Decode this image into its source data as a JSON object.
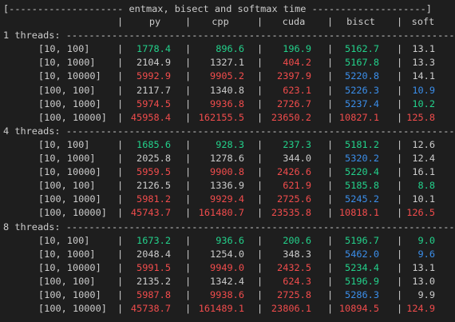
{
  "terminal": {
    "top_partial": "..............................................................................................",
    "title_line": "[-------------------- entmax, bisect and softmax time --------------------]",
    "header": {
      "cols": [
        "py",
        "cpp",
        "cuda",
        "bisct",
        "soft"
      ],
      "sep": "|"
    },
    "groups": [
      {
        "label": "1 threads: ----------------------------------------------------------------------",
        "rows": [
          {
            "label": "[10, 100]",
            "vals": [
              [
                "1778.4",
                "green"
              ],
              [
                "896.6",
                "green"
              ],
              [
                "196.9",
                "green"
              ],
              [
                "5162.7",
                "green"
              ],
              [
                "13.1",
                "white"
              ]
            ]
          },
          {
            "label": "[10, 1000]",
            "vals": [
              [
                "2104.9",
                "white"
              ],
              [
                "1327.1",
                "white"
              ],
              [
                "404.2",
                "red"
              ],
              [
                "5167.8",
                "green"
              ],
              [
                "13.3",
                "white"
              ]
            ]
          },
          {
            "label": "[10, 10000]",
            "vals": [
              [
                "5992.9",
                "red"
              ],
              [
                "9905.2",
                "red"
              ],
              [
                "2397.9",
                "red"
              ],
              [
                "5220.8",
                "blue"
              ],
              [
                "14.1",
                "white"
              ]
            ]
          },
          {
            "label": "[100, 100]",
            "vals": [
              [
                "2117.7",
                "white"
              ],
              [
                "1340.8",
                "white"
              ],
              [
                "623.1",
                "red"
              ],
              [
                "5226.3",
                "blue"
              ],
              [
                "10.9",
                "blue"
              ]
            ]
          },
          {
            "label": "[100, 1000]",
            "vals": [
              [
                "5974.5",
                "red"
              ],
              [
                "9936.8",
                "red"
              ],
              [
                "2726.7",
                "red"
              ],
              [
                "5237.4",
                "blue"
              ],
              [
                "10.2",
                "green"
              ]
            ]
          },
          {
            "label": "[100, 10000]",
            "vals": [
              [
                "45958.4",
                "red"
              ],
              [
                "162155.5",
                "red"
              ],
              [
                "23650.2",
                "red"
              ],
              [
                "10827.1",
                "red"
              ],
              [
                "125.8",
                "red"
              ]
            ]
          }
        ]
      },
      {
        "label": "4 threads: ----------------------------------------------------------------------",
        "rows": [
          {
            "label": "[10, 100]",
            "vals": [
              [
                "1685.6",
                "green"
              ],
              [
                "928.3",
                "green"
              ],
              [
                "237.3",
                "green"
              ],
              [
                "5181.2",
                "green"
              ],
              [
                "12.6",
                "white"
              ]
            ]
          },
          {
            "label": "[10, 1000]",
            "vals": [
              [
                "2025.8",
                "white"
              ],
              [
                "1278.6",
                "white"
              ],
              [
                "344.0",
                "white"
              ],
              [
                "5320.2",
                "blue"
              ],
              [
                "12.4",
                "white"
              ]
            ]
          },
          {
            "label": "[10, 10000]",
            "vals": [
              [
                "5959.5",
                "red"
              ],
              [
                "9900.8",
                "red"
              ],
              [
                "2426.6",
                "red"
              ],
              [
                "5220.4",
                "green"
              ],
              [
                "16.1",
                "white"
              ]
            ]
          },
          {
            "label": "[100, 100]",
            "vals": [
              [
                "2126.5",
                "white"
              ],
              [
                "1336.9",
                "white"
              ],
              [
                "621.9",
                "red"
              ],
              [
                "5185.8",
                "green"
              ],
              [
                "8.8",
                "green"
              ]
            ]
          },
          {
            "label": "[100, 1000]",
            "vals": [
              [
                "5981.2",
                "red"
              ],
              [
                "9929.4",
                "red"
              ],
              [
                "2725.6",
                "red"
              ],
              [
                "5245.2",
                "blue"
              ],
              [
                "10.1",
                "white"
              ]
            ]
          },
          {
            "label": "[100, 10000]",
            "vals": [
              [
                "45743.7",
                "red"
              ],
              [
                "161480.7",
                "red"
              ],
              [
                "23535.8",
                "red"
              ],
              [
                "10818.1",
                "red"
              ],
              [
                "126.5",
                "red"
              ]
            ]
          }
        ]
      },
      {
        "label": "8 threads: ----------------------------------------------------------------------",
        "rows": [
          {
            "label": "[10, 100]",
            "vals": [
              [
                "1673.2",
                "green"
              ],
              [
                "936.6",
                "green"
              ],
              [
                "200.6",
                "green"
              ],
              [
                "5196.7",
                "green"
              ],
              [
                "9.0",
                "green"
              ]
            ]
          },
          {
            "label": "[10, 1000]",
            "vals": [
              [
                "2048.4",
                "white"
              ],
              [
                "1254.0",
                "white"
              ],
              [
                "348.3",
                "white"
              ],
              [
                "5462.0",
                "blue"
              ],
              [
                "9.6",
                "blue"
              ]
            ]
          },
          {
            "label": "[10, 10000]",
            "vals": [
              [
                "5991.5",
                "red"
              ],
              [
                "9949.0",
                "red"
              ],
              [
                "2432.5",
                "red"
              ],
              [
                "5234.4",
                "green"
              ],
              [
                "13.1",
                "white"
              ]
            ]
          },
          {
            "label": "[100, 100]",
            "vals": [
              [
                "2135.2",
                "white"
              ],
              [
                "1342.4",
                "white"
              ],
              [
                "624.3",
                "red"
              ],
              [
                "5196.9",
                "green"
              ],
              [
                "13.0",
                "white"
              ]
            ]
          },
          {
            "label": "[100, 1000]",
            "vals": [
              [
                "5987.8",
                "red"
              ],
              [
                "9938.6",
                "red"
              ],
              [
                "2725.8",
                "red"
              ],
              [
                "5286.3",
                "blue"
              ],
              [
                "9.9",
                "white"
              ]
            ]
          },
          {
            "label": "[100, 10000]",
            "vals": [
              [
                "45738.7",
                "red"
              ],
              [
                "161489.1",
                "red"
              ],
              [
                "23806.1",
                "red"
              ],
              [
                "10894.5",
                "red"
              ],
              [
                "124.9",
                "red"
              ]
            ]
          }
        ]
      }
    ]
  },
  "colors": {
    "background": "#1e1e1e",
    "text": "#cccccc",
    "green": "#23d18b",
    "red": "#f14c4c",
    "blue": "#3b8eea"
  }
}
